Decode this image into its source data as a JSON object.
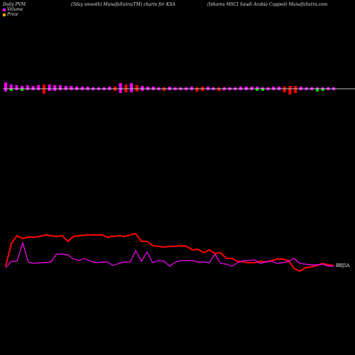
{
  "header": {
    "left": "Daily PVM",
    "middle": "(5day smooth) MunafaSutra(TM) charts for KSA",
    "right": "(Ishares MSCI Saudi  Arabia  Capped) MunafaSutra.com"
  },
  "legend": {
    "volume_label": "Volume",
    "price_label": "Price",
    "volume_color": "#ff00ff",
    "price_color": "#ffa500"
  },
  "chart_data": {
    "type": "line",
    "end_label": "BBJ5A",
    "colors": {
      "volume_up": "#ff00ff",
      "volume_down": "#ff0000",
      "volume_neutral": "#00cc00",
      "price_line": "#ff0000",
      "volume_line": "#ff00ff",
      "baseline": "#ffffff"
    },
    "volume_bars": [
      {
        "up": 9,
        "down": 4,
        "kind": "up"
      },
      {
        "up": 6,
        "down": 3,
        "kind": "neutral"
      },
      {
        "up": 5,
        "down": 2,
        "kind": "up"
      },
      {
        "up": 4,
        "down": 3,
        "kind": "neutral"
      },
      {
        "up": 5,
        "down": 2,
        "kind": "up"
      },
      {
        "up": 4,
        "down": 2,
        "kind": "up"
      },
      {
        "up": 5,
        "down": 2,
        "kind": "up"
      },
      {
        "up": 6,
        "down": 7,
        "kind": "down"
      },
      {
        "up": 6,
        "down": 3,
        "kind": "up"
      },
      {
        "up": 5,
        "down": 3,
        "kind": "up"
      },
      {
        "up": 5,
        "down": 2,
        "kind": "up"
      },
      {
        "up": 4,
        "down": 2,
        "kind": "up"
      },
      {
        "up": 4,
        "down": 2,
        "kind": "up"
      },
      {
        "up": 3,
        "down": 2,
        "kind": "up"
      },
      {
        "up": 3,
        "down": 2,
        "kind": "up"
      },
      {
        "up": 3,
        "down": 2,
        "kind": "up"
      },
      {
        "up": 2,
        "down": 2,
        "kind": "up"
      },
      {
        "up": 2,
        "down": 2,
        "kind": "up"
      },
      {
        "up": 2,
        "down": 2,
        "kind": "up"
      },
      {
        "up": 3,
        "down": 2,
        "kind": "up"
      },
      {
        "up": 3,
        "down": 3,
        "kind": "down"
      },
      {
        "up": 8,
        "down": 6,
        "kind": "up"
      },
      {
        "up": 6,
        "down": 5,
        "kind": "down"
      },
      {
        "up": 8,
        "down": 5,
        "kind": "up"
      },
      {
        "up": 5,
        "down": 4,
        "kind": "down"
      },
      {
        "up": 4,
        "down": 3,
        "kind": "up"
      },
      {
        "up": 3,
        "down": 2,
        "kind": "up"
      },
      {
        "up": 3,
        "down": 2,
        "kind": "up"
      },
      {
        "up": 2,
        "down": 2,
        "kind": "up"
      },
      {
        "up": 2,
        "down": 3,
        "kind": "down"
      },
      {
        "up": 3,
        "down": 2,
        "kind": "up"
      },
      {
        "up": 2,
        "down": 2,
        "kind": "up"
      },
      {
        "up": 2,
        "down": 2,
        "kind": "up"
      },
      {
        "up": 2,
        "down": 2,
        "kind": "up"
      },
      {
        "up": 3,
        "down": 2,
        "kind": "up"
      },
      {
        "up": 2,
        "down": 4,
        "kind": "down"
      },
      {
        "up": 3,
        "down": 3,
        "kind": "down"
      },
      {
        "up": 3,
        "down": 2,
        "kind": "up"
      },
      {
        "up": 2,
        "down": 2,
        "kind": "up"
      },
      {
        "up": 2,
        "down": 3,
        "kind": "down"
      },
      {
        "up": 2,
        "down": 2,
        "kind": "up"
      },
      {
        "up": 2,
        "down": 2,
        "kind": "up"
      },
      {
        "up": 2,
        "down": 2,
        "kind": "up"
      },
      {
        "up": 3,
        "down": 2,
        "kind": "up"
      },
      {
        "up": 3,
        "down": 2,
        "kind": "up"
      },
      {
        "up": 3,
        "down": 2,
        "kind": "up"
      },
      {
        "up": 3,
        "down": 3,
        "kind": "neutral"
      },
      {
        "up": 2,
        "down": 3,
        "kind": "neutral"
      },
      {
        "up": 2,
        "down": 2,
        "kind": "up"
      },
      {
        "up": 3,
        "down": 2,
        "kind": "up"
      },
      {
        "up": 3,
        "down": 2,
        "kind": "up"
      },
      {
        "up": 3,
        "down": 5,
        "kind": "down"
      },
      {
        "up": 4,
        "down": 8,
        "kind": "down"
      },
      {
        "up": 4,
        "down": 6,
        "kind": "down"
      },
      {
        "up": 3,
        "down": 2,
        "kind": "up"
      },
      {
        "up": 2,
        "down": 2,
        "kind": "up"
      },
      {
        "up": 2,
        "down": 2,
        "kind": "up"
      },
      {
        "up": 2,
        "down": 4,
        "kind": "neutral"
      },
      {
        "up": 2,
        "down": 3,
        "kind": "neutral"
      },
      {
        "up": 2,
        "down": 2,
        "kind": "up"
      },
      {
        "up": 2,
        "down": 2,
        "kind": "up"
      }
    ],
    "price_series": [
      {
        "x": 0,
        "y": 375
      },
      {
        "x": 1,
        "y": 343
      },
      {
        "x": 2,
        "y": 332
      },
      {
        "x": 3,
        "y": 336
      },
      {
        "x": 4,
        "y": 334
      },
      {
        "x": 5,
        "y": 334
      },
      {
        "x": 6,
        "y": 333
      },
      {
        "x": 7,
        "y": 331
      },
      {
        "x": 8,
        "y": 332
      },
      {
        "x": 9,
        "y": 333
      },
      {
        "x": 10,
        "y": 332
      },
      {
        "x": 11,
        "y": 340
      },
      {
        "x": 12,
        "y": 333
      },
      {
        "x": 13,
        "y": 332
      },
      {
        "x": 14,
        "y": 331
      },
      {
        "x": 15,
        "y": 331
      },
      {
        "x": 16,
        "y": 331
      },
      {
        "x": 17,
        "y": 331
      },
      {
        "x": 18,
        "y": 334
      },
      {
        "x": 19,
        "y": 333
      },
      {
        "x": 20,
        "y": 332
      },
      {
        "x": 21,
        "y": 333
      },
      {
        "x": 22,
        "y": 331
      },
      {
        "x": 23,
        "y": 329
      },
      {
        "x": 24,
        "y": 340
      },
      {
        "x": 25,
        "y": 340
      },
      {
        "x": 26,
        "y": 346
      },
      {
        "x": 27,
        "y": 347
      },
      {
        "x": 28,
        "y": 348
      },
      {
        "x": 29,
        "y": 347
      },
      {
        "x": 30,
        "y": 347
      },
      {
        "x": 31,
        "y": 346
      },
      {
        "x": 32,
        "y": 347
      },
      {
        "x": 33,
        "y": 352
      },
      {
        "x": 34,
        "y": 351
      },
      {
        "x": 35,
        "y": 356
      },
      {
        "x": 36,
        "y": 352
      },
      {
        "x": 37,
        "y": 357
      },
      {
        "x": 38,
        "y": 356
      },
      {
        "x": 39,
        "y": 364
      },
      {
        "x": 40,
        "y": 364
      },
      {
        "x": 41,
        "y": 368
      },
      {
        "x": 42,
        "y": 369
      },
      {
        "x": 43,
        "y": 370
      },
      {
        "x": 44,
        "y": 370
      },
      {
        "x": 45,
        "y": 368
      },
      {
        "x": 46,
        "y": 369
      },
      {
        "x": 47,
        "y": 367
      },
      {
        "x": 48,
        "y": 365
      },
      {
        "x": 49,
        "y": 365
      },
      {
        "x": 50,
        "y": 367
      },
      {
        "x": 51,
        "y": 378
      },
      {
        "x": 52,
        "y": 382
      },
      {
        "x": 53,
        "y": 377
      },
      {
        "x": 54,
        "y": 376
      },
      {
        "x": 55,
        "y": 374
      },
      {
        "x": 56,
        "y": 371
      },
      {
        "x": 57,
        "y": 373
      },
      {
        "x": 58,
        "y": 374
      }
    ],
    "volume_series": [
      {
        "x": 0,
        "y": 377
      },
      {
        "x": 1,
        "y": 368
      },
      {
        "x": 2,
        "y": 368
      },
      {
        "x": 3,
        "y": 342
      },
      {
        "x": 4,
        "y": 369
      },
      {
        "x": 5,
        "y": 371
      },
      {
        "x": 6,
        "y": 370
      },
      {
        "x": 7,
        "y": 370
      },
      {
        "x": 8,
        "y": 369
      },
      {
        "x": 9,
        "y": 358
      },
      {
        "x": 10,
        "y": 358
      },
      {
        "x": 11,
        "y": 359
      },
      {
        "x": 12,
        "y": 365
      },
      {
        "x": 13,
        "y": 367
      },
      {
        "x": 14,
        "y": 364
      },
      {
        "x": 15,
        "y": 368
      },
      {
        "x": 16,
        "y": 370
      },
      {
        "x": 17,
        "y": 369
      },
      {
        "x": 18,
        "y": 369
      },
      {
        "x": 19,
        "y": 374
      },
      {
        "x": 20,
        "y": 371
      },
      {
        "x": 21,
        "y": 369
      },
      {
        "x": 22,
        "y": 369
      },
      {
        "x": 23,
        "y": 353
      },
      {
        "x": 24,
        "y": 368
      },
      {
        "x": 25,
        "y": 355
      },
      {
        "x": 26,
        "y": 370
      },
      {
        "x": 27,
        "y": 367
      },
      {
        "x": 28,
        "y": 368
      },
      {
        "x": 29,
        "y": 375
      },
      {
        "x": 30,
        "y": 369
      },
      {
        "x": 31,
        "y": 367
      },
      {
        "x": 32,
        "y": 367
      },
      {
        "x": 33,
        "y": 367
      },
      {
        "x": 34,
        "y": 369
      },
      {
        "x": 35,
        "y": 369
      },
      {
        "x": 36,
        "y": 370
      },
      {
        "x": 37,
        "y": 358
      },
      {
        "x": 38,
        "y": 371
      },
      {
        "x": 39,
        "y": 372
      },
      {
        "x": 40,
        "y": 375
      },
      {
        "x": 41,
        "y": 370
      },
      {
        "x": 42,
        "y": 367
      },
      {
        "x": 43,
        "y": 367
      },
      {
        "x": 44,
        "y": 366
      },
      {
        "x": 45,
        "y": 371
      },
      {
        "x": 46,
        "y": 369
      },
      {
        "x": 47,
        "y": 368
      },
      {
        "x": 48,
        "y": 371
      },
      {
        "x": 49,
        "y": 370
      },
      {
        "x": 50,
        "y": 368
      },
      {
        "x": 51,
        "y": 364
      },
      {
        "x": 52,
        "y": 371
      },
      {
        "x": 53,
        "y": 372
      },
      {
        "x": 54,
        "y": 373
      },
      {
        "x": 55,
        "y": 373
      },
      {
        "x": 56,
        "y": 372
      },
      {
        "x": 57,
        "y": 375
      },
      {
        "x": 58,
        "y": 375
      }
    ]
  }
}
